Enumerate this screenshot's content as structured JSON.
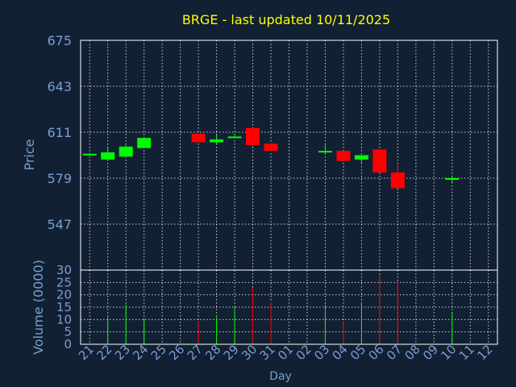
{
  "colors": {
    "background": "#112033",
    "frame": "#ffffff",
    "grid": "#ffffff",
    "title": "#ffff00",
    "label": "#7a9fd0",
    "axis_title": "#7a9fd0",
    "up": "#00ff00",
    "down": "#ff0000"
  },
  "chart_data": {
    "type": "candlestick",
    "title": "BRGE - last updated 10/11/2025",
    "xlabel": "Day",
    "price_panel": {
      "ylabel": "Price",
      "ylim": [
        515,
        675
      ],
      "yticks": [
        547,
        579,
        611,
        643,
        675
      ]
    },
    "volume_panel": {
      "ylabel": "Volume (0000)",
      "ylim": [
        0,
        30
      ],
      "yticks": [
        0,
        5,
        10,
        15,
        20,
        25,
        30
      ]
    },
    "x_ticks": [
      "21",
      "22",
      "23",
      "24",
      "25",
      "26",
      "27",
      "28",
      "29",
      "30",
      "31",
      "01",
      "02",
      "03",
      "04",
      "05",
      "06",
      "07",
      "08",
      "09",
      "10",
      "11",
      "12"
    ],
    "grid": true,
    "candles": [
      {
        "day": "21",
        "open": 596,
        "close": 596,
        "high": 596,
        "low": 596,
        "volume": 0
      },
      {
        "day": "22",
        "open": 592,
        "close": 597,
        "high": 600,
        "low": 592,
        "volume": 11
      },
      {
        "day": "23",
        "open": 594,
        "close": 601,
        "high": 602,
        "low": 594,
        "volume": 16
      },
      {
        "day": "24",
        "open": 600,
        "close": 607,
        "high": 607,
        "low": 600,
        "volume": 10
      },
      {
        "day": "27",
        "open": 610,
        "close": 604,
        "high": 610,
        "low": 604,
        "volume": 9
      },
      {
        "day": "28",
        "open": 604,
        "close": 606,
        "high": 609,
        "low": 603,
        "volume": 11
      },
      {
        "day": "29",
        "open": 607,
        "close": 608,
        "high": 610,
        "low": 607,
        "volume": 15
      },
      {
        "day": "30",
        "open": 614,
        "close": 602,
        "high": 614,
        "low": 602,
        "volume": 23
      },
      {
        "day": "31",
        "open": 603,
        "close": 598,
        "high": 603,
        "low": 598,
        "volume": 17
      },
      {
        "day": "03",
        "open": 597,
        "close": 598,
        "high": 602,
        "low": 596,
        "volume": 16
      },
      {
        "day": "04",
        "open": 598,
        "close": 591,
        "high": 598,
        "low": 591,
        "volume": 9
      },
      {
        "day": "05",
        "open": 592,
        "close": 595,
        "high": 595,
        "low": 589,
        "volume": 17
      },
      {
        "day": "06",
        "open": 599,
        "close": 583,
        "high": 599,
        "low": 583,
        "volume": 28
      },
      {
        "day": "07",
        "open": 583,
        "close": 572,
        "high": 589,
        "low": 572,
        "volume": 25
      },
      {
        "day": "10",
        "open": 578,
        "close": 579,
        "high": 580,
        "low": 576,
        "volume": 13
      }
    ]
  }
}
